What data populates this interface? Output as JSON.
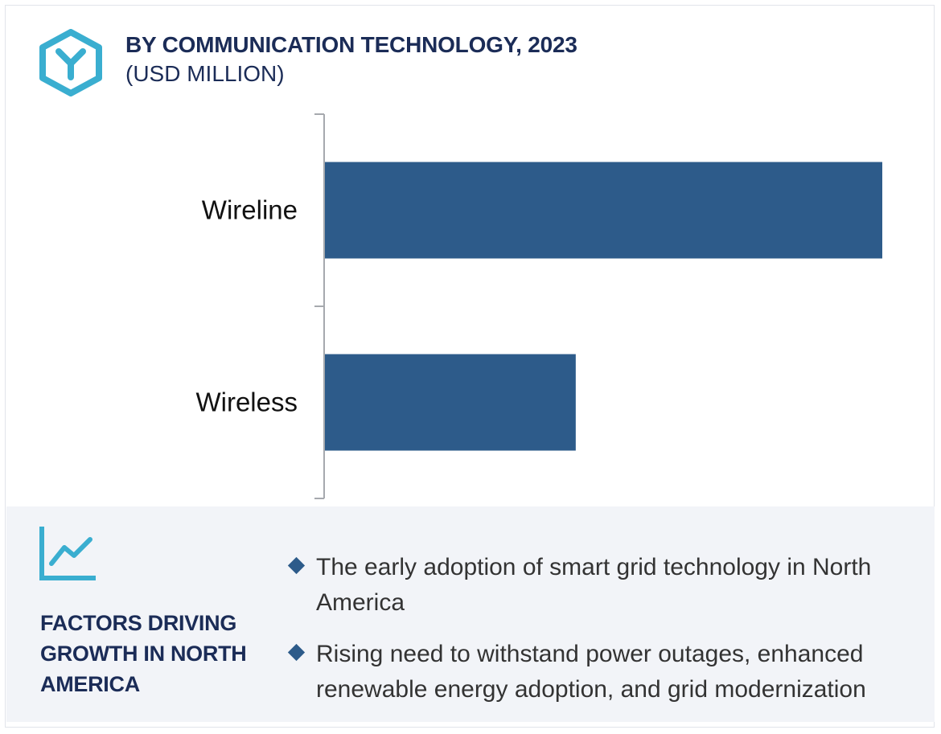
{
  "header": {
    "title": "BY COMMUNICATION TECHNOLOGY, 2023",
    "subtitle": "(USD MILLION)",
    "logo_icon": "hexagon-y-logo-icon"
  },
  "chart_data": {
    "type": "bar",
    "orientation": "horizontal",
    "title": "BY COMMUNICATION TECHNOLOGY, 2023",
    "subtitle": "(USD MILLION)",
    "categories": [
      "Wireline",
      "Wireless"
    ],
    "values": [
      100,
      45
    ],
    "xlim": [
      0,
      100
    ],
    "grid": false,
    "legend": "none",
    "bar_color": "#2d5b8a",
    "axis_color": "#a6a9ae"
  },
  "factors": {
    "icon": "trend-chart-icon",
    "title": "FACTORS DRIVING GROWTH IN NORTH AMERICA",
    "bullets": [
      "The early adoption of smart grid technology in North America",
      "Rising need to withstand power outages, enhanced renewable energy adoption, and grid modernization"
    ]
  },
  "colors": {
    "navy": "#1b2c57",
    "bar": "#2d5b8a",
    "accent": "#3aaed0",
    "panel": "#f2f4f8"
  }
}
